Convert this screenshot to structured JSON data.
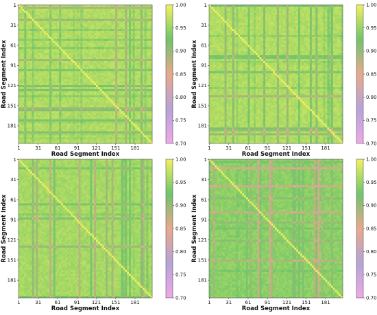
{
  "colormap": {
    "stops": [
      {
        "v": 0.7,
        "c": "#f0a8e6"
      },
      {
        "v": 0.775,
        "c": "#b6a3d8"
      },
      {
        "v": 0.85,
        "c": "#eaa88c"
      },
      {
        "v": 0.925,
        "c": "#6fc56a"
      },
      {
        "v": 1.0,
        "c": "#f2f25e"
      }
    ]
  },
  "chart_data": [
    {
      "type": "heatmap",
      "xlabel": "Road Segment Index",
      "ylabel": "Road Segment Index",
      "x_ticks": [
        "1",
        "31",
        "61",
        "91",
        "121",
        "151",
        "181"
      ],
      "y_ticks": [
        "1",
        "31",
        "61",
        "91",
        "121",
        "151",
        "181"
      ],
      "n_segments": 207,
      "value_range": [
        0.7,
        1.0
      ],
      "colorbar_ticks": [
        "1.00",
        "0.95",
        "0.90",
        "0.85",
        "0.80",
        "0.75",
        "0.70"
      ],
      "mean_value": 0.955
    },
    {
      "type": "heatmap",
      "xlabel": "Road Segment Index",
      "ylabel": "Road Segment Index",
      "x_ticks": [
        "1",
        "31",
        "61",
        "91",
        "121",
        "151",
        "181"
      ],
      "y_ticks": [
        "1",
        "31",
        "61",
        "91",
        "121",
        "151",
        "181"
      ],
      "n_segments": 207,
      "value_range": [
        0.7,
        1.0
      ],
      "colorbar_ticks": [
        "1.00",
        "0.95",
        "0.90",
        "0.85",
        "0.80",
        "0.75",
        "0.70"
      ],
      "mean_value": 0.955
    },
    {
      "type": "heatmap",
      "xlabel": "Road Segment Index",
      "ylabel": "Road Segment Index",
      "x_ticks": [
        "1",
        "31",
        "61",
        "91",
        "121",
        "151",
        "181"
      ],
      "y_ticks": [
        "1",
        "31",
        "61",
        "91",
        "121",
        "151",
        "181"
      ],
      "n_segments": 207,
      "value_range": [
        0.7,
        1.0
      ],
      "colorbar_ticks": [
        "1.00",
        "0.95",
        "0.90",
        "0.85",
        "0.80",
        "0.75",
        "0.70"
      ],
      "mean_value": 0.945
    },
    {
      "type": "heatmap",
      "xlabel": "Road Segment Index",
      "ylabel": "Road Segment Index",
      "x_ticks": [
        "1",
        "31",
        "61",
        "91",
        "121",
        "151",
        "181"
      ],
      "y_ticks": [
        "1",
        "31",
        "61",
        "91",
        "121",
        "151",
        "181"
      ],
      "n_segments": 207,
      "value_range": [
        0.7,
        1.0
      ],
      "colorbar_ticks": [
        "1.00",
        "0.95",
        "0.90",
        "0.85",
        "0.80",
        "0.75",
        "0.70"
      ],
      "mean_value": 0.92
    }
  ]
}
